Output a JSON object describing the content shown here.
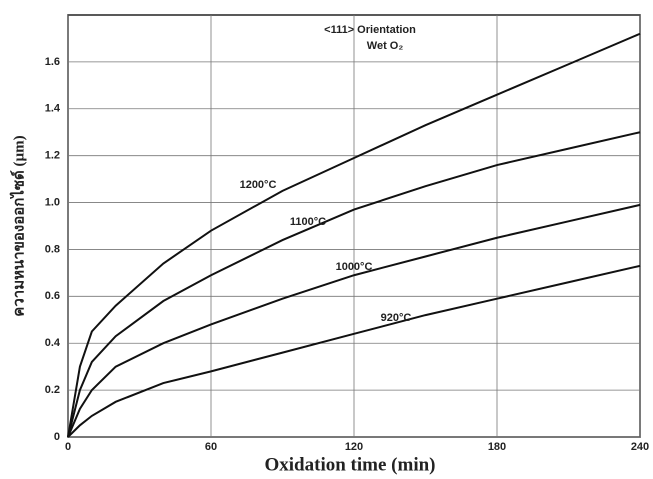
{
  "chart_data": {
    "type": "line",
    "annotations": [
      "<111> Orientation",
      "Wet O₂"
    ],
    "x_label": "Oxidation time (min)",
    "y_label": "ความหนาของออกไซด์ (µm)",
    "x": [
      0,
      5,
      10,
      20,
      40,
      60,
      90,
      120,
      150,
      180,
      210,
      240
    ],
    "series": [
      {
        "name": "1200°C",
        "color": "#111111",
        "values": [
          0,
          0.3,
          0.45,
          0.56,
          0.74,
          0.88,
          1.05,
          1.19,
          1.33,
          1.46,
          1.59,
          1.72
        ]
      },
      {
        "name": "1100°C",
        "color": "#111111",
        "values": [
          0,
          0.2,
          0.32,
          0.43,
          0.58,
          0.69,
          0.84,
          0.97,
          1.07,
          1.16,
          1.23,
          1.3
        ]
      },
      {
        "name": "1000°C",
        "color": "#111111",
        "values": [
          0,
          0.12,
          0.2,
          0.3,
          0.4,
          0.48,
          0.59,
          0.69,
          0.77,
          0.85,
          0.92,
          0.99
        ]
      },
      {
        "name": "920°C",
        "color": "#111111",
        "values": [
          0,
          0.05,
          0.09,
          0.15,
          0.23,
          0.28,
          0.36,
          0.44,
          0.52,
          0.59,
          0.66,
          0.73
        ]
      }
    ],
    "xlim": [
      0,
      240
    ],
    "xticks": [
      0,
      60,
      120,
      180,
      240
    ],
    "ylim": [
      0,
      1.8
    ],
    "yticks": [
      0,
      0.2,
      0.4,
      0.6,
      0.8,
      {
        "value": 1,
        "label": "1.0"
      },
      1.2,
      1.4,
      1.6
    ],
    "grid": true
  }
}
